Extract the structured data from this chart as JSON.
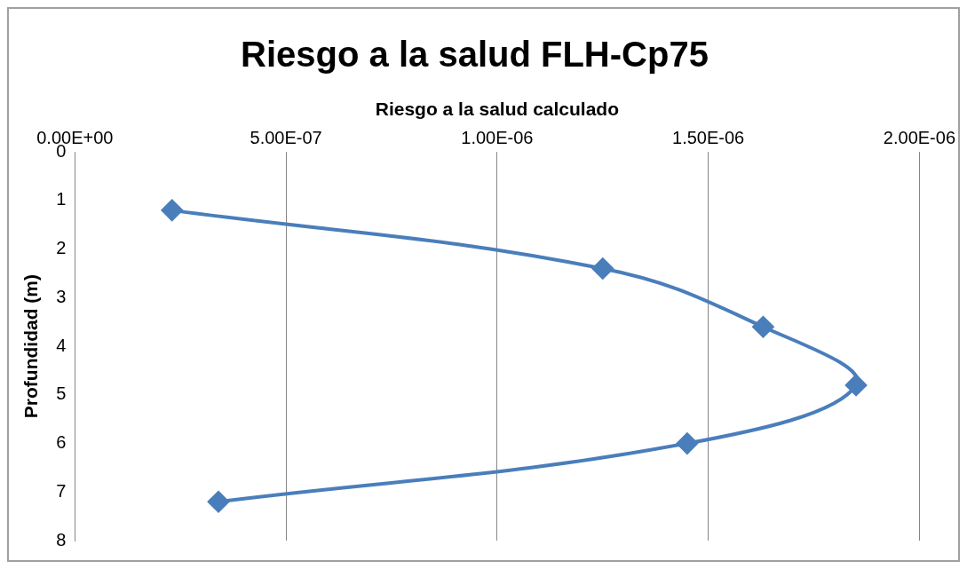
{
  "chart_data": {
    "type": "line",
    "title": "Riesgo a la salud FLH-Cp75",
    "xlabel": "Riesgo a la salud calculado",
    "ylabel": "Profundidad (m)",
    "x": [
      2.3e-07,
      1.25e-06,
      1.63e-06,
      1.85e-06,
      1.45e-06,
      3.4e-07
    ],
    "series": [
      {
        "color": "#4a7ebb",
        "values": [
          1.2,
          2.4,
          3.6,
          4.8,
          6.0,
          7.2
        ]
      }
    ],
    "xlim": [
      0,
      2e-06
    ],
    "xticks": [
      {
        "value": 0,
        "label": "0.00E+00"
      },
      {
        "value": 5e-07,
        "label": "5.00E-07"
      },
      {
        "value": 1e-06,
        "label": "1.00E-06"
      },
      {
        "value": 1.5e-06,
        "label": "1.50E-06"
      },
      {
        "value": 2e-06,
        "label": "2.00E-06"
      }
    ],
    "ylim": [
      8,
      0
    ],
    "yticks": [
      0,
      1,
      2,
      3,
      4,
      5,
      6,
      7,
      8
    ],
    "grid": "x",
    "marker": "diamond",
    "line_style": "solid",
    "legend": false
  }
}
